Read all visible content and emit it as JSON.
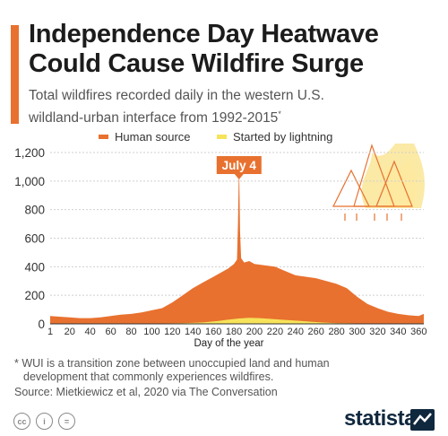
{
  "header": {
    "title_line1": "Independence Day Heatwave",
    "title_line2": "Could Cause Wildfire Surge",
    "subtitle_line1": "Total wildfires recorded daily in the western U.S.",
    "subtitle_line2": "wildland-urban interface from 1992-2015",
    "subtitle_mark": "*"
  },
  "colors": {
    "human": "#e8712f",
    "lightning": "#f7e35a",
    "accent": "#e8712f",
    "brand": "#10283e",
    "fire_graphic": "#e8712f",
    "fire_graphic_light": "#fbe9a6"
  },
  "chart_data": {
    "type": "area",
    "title": "",
    "xlabel": "Day of the year",
    "ylabel": "",
    "xlim": [
      1,
      365
    ],
    "ylim": [
      0,
      1200
    ],
    "x_ticks": [
      1,
      20,
      40,
      60,
      80,
      100,
      120,
      140,
      160,
      180,
      200,
      220,
      240,
      260,
      280,
      300,
      320,
      340,
      360
    ],
    "x_tick_labels": [
      "1",
      "20",
      "40",
      "60",
      "80",
      "100",
      "120",
      "140",
      "160",
      "180",
      "200",
      "220",
      "240",
      "260",
      "280",
      "300",
      "320",
      "340",
      "360"
    ],
    "y_ticks": [
      0,
      200,
      400,
      600,
      800,
      1000,
      1200
    ],
    "y_tick_labels": [
      "0",
      "200",
      "400",
      "600",
      "800",
      "1,000",
      "1,200"
    ],
    "legend_position": "top-center",
    "annotation": {
      "label": "July 4",
      "x": 185
    },
    "series": [
      {
        "name": "Human source",
        "x": [
          1,
          10,
          20,
          30,
          40,
          50,
          60,
          70,
          80,
          90,
          100,
          110,
          120,
          130,
          140,
          150,
          160,
          170,
          175,
          180,
          183,
          184,
          185,
          186,
          187,
          190,
          195,
          200,
          210,
          220,
          230,
          240,
          250,
          260,
          270,
          280,
          290,
          300,
          310,
          320,
          330,
          340,
          350,
          360,
          365
        ],
        "values": [
          55,
          50,
          45,
          40,
          40,
          45,
          55,
          65,
          70,
          80,
          95,
          110,
          150,
          200,
          250,
          290,
          330,
          370,
          390,
          420,
          450,
          700,
          1150,
          650,
          460,
          430,
          440,
          420,
          410,
          400,
          370,
          340,
          330,
          320,
          300,
          280,
          250,
          190,
          140,
          110,
          85,
          70,
          60,
          55,
          70
        ]
      },
      {
        "name": "Started by lightning",
        "x": [
          1,
          40,
          80,
          110,
          130,
          150,
          165,
          175,
          185,
          195,
          205,
          215,
          225,
          235,
          245,
          255,
          265,
          280,
          300,
          330,
          365
        ],
        "values": [
          0,
          0,
          1,
          3,
          5,
          10,
          20,
          30,
          38,
          42,
          40,
          35,
          30,
          25,
          20,
          15,
          10,
          5,
          3,
          1,
          0
        ]
      }
    ]
  },
  "footnote": {
    "line1": "* WUI is a transition zone between unoccupied land and human",
    "line2": "development that commonly experiences wildfires."
  },
  "source": "Source: Mietkiewicz et al, 2020 via The Conversation",
  "license_icons": [
    {
      "name": "cc-icon",
      "glyph": "cc"
    },
    {
      "name": "attribution-icon",
      "glyph": "i"
    },
    {
      "name": "no-derivatives-icon",
      "glyph": "="
    }
  ],
  "brand": "statista"
}
